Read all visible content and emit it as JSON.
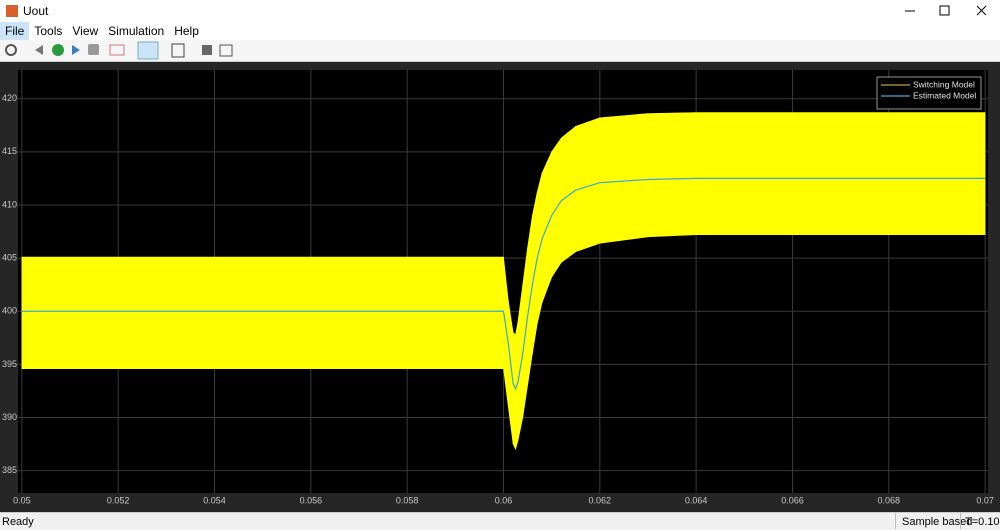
{
  "window": {
    "title": "Uout"
  },
  "menu": [
    "File",
    "Tools",
    "View",
    "Simulation",
    "Help"
  ],
  "status": {
    "left": "Ready",
    "mode": "Sample based",
    "time": "T=0.100"
  },
  "chart_data": {
    "type": "line",
    "x": [
      0.05,
      0.06,
      0.0601,
      0.0602,
      0.06025,
      0.0603,
      0.0604,
      0.0605,
      0.0606,
      0.0607,
      0.0608,
      0.061,
      0.0612,
      0.0615,
      0.062,
      0.063,
      0.064,
      0.07
    ],
    "series": [
      {
        "name": "Switching Model",
        "color": "#ffff00",
        "legend_color": "#b8a82e",
        "upper": [
          405.1,
          405.1,
          401,
          398,
          397.8,
          399,
          402.5,
          406,
          409,
          411.2,
          413,
          415,
          416.3,
          417.4,
          418.2,
          418.6,
          418.7,
          418.7
        ],
        "lower": [
          394.6,
          394.6,
          391,
          387.5,
          387,
          387.8,
          390,
          393,
          396,
          398.8,
          400.8,
          403.2,
          404.6,
          405.6,
          406.4,
          407,
          407.2,
          407.2
        ]
      },
      {
        "name": "Estimated Model",
        "color": "#3ea6d8",
        "values": [
          400,
          400,
          397,
          393.2,
          392.7,
          393.3,
          396,
          399.5,
          402.5,
          405,
          406.8,
          409,
          410.4,
          411.4,
          412.1,
          412.4,
          412.5,
          412.5
        ]
      }
    ],
    "xlim": [
      0.04992,
      0.07006
    ],
    "ylim": [
      382.9,
      422.7
    ],
    "xticks": [
      0.05,
      0.052,
      0.054,
      0.056,
      0.058,
      0.06,
      0.062,
      0.064,
      0.066,
      0.068,
      0.07
    ],
    "yticks": [
      385,
      390,
      395,
      400,
      405,
      410,
      415,
      420
    ],
    "grid": true,
    "legend": "upper right"
  }
}
